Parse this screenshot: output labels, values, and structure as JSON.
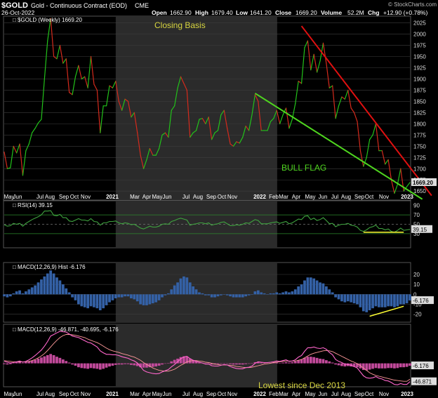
{
  "header": {
    "symbol": "$GOLD",
    "description": "Gold - Continuous Contract (EOD)",
    "exchange": "CME",
    "date": "26-Oct-2022",
    "brand": "© StockCharts.com",
    "open_label": "Open",
    "open": "1662.90",
    "high_label": "High",
    "high": "1679.40",
    "low_label": "Low",
    "low": "1641.20",
    "close_label": "Close",
    "close": "1669.20",
    "volume_label": "Volume",
    "volume": "52.2M",
    "chg_label": "Chg",
    "chg": "+12.90 (+0.78%)"
  },
  "colors": {
    "up": "#22c21a",
    "down": "#d42a1c",
    "annotation_text": "#d8d640",
    "bull_flag_line": "#4fd61f",
    "resistance_line": "#e01010",
    "shading": "#2b2b2b",
    "rsi_line": "#3fa43f",
    "histogram": "#3461a6",
    "macd_line": "#ff66cc",
    "signal_line": "#ff9a9a",
    "macd_hist": "#c24a9b",
    "yellow_line": "#ffff33"
  },
  "chart_data": [
    {
      "type": "line",
      "panel": "price",
      "legend": "$GOLD (Weekly) 1669.20",
      "last_value_label": "1669.20",
      "annotations": [
        "Closing Basis",
        "BULL FLAG"
      ],
      "ylim": [
        1630,
        2040
      ],
      "yticks": [
        1650,
        1675,
        1700,
        1725,
        1750,
        1775,
        1800,
        1825,
        1850,
        1875,
        1900,
        1925,
        1950,
        1975,
        2000,
        2025
      ],
      "x_labels": [
        "May",
        "Jun",
        "Jul",
        "Aug",
        "Sep",
        "Oct",
        "Nov",
        "2021",
        "Mar",
        "Apr",
        "May",
        "Jun",
        "Jul",
        "Aug",
        "Sep",
        "Oct",
        "Nov",
        "2022",
        "Feb",
        "Mar",
        "Apr",
        "May",
        "Jun",
        "Jul",
        "Aug",
        "Sep",
        "Oct",
        "Nov",
        "2023"
      ],
      "x": [
        "2020-04-24",
        "2020-05-01",
        "2020-05-08",
        "2020-05-15",
        "2020-05-22",
        "2020-05-29",
        "2020-06-05",
        "2020-06-12",
        "2020-06-19",
        "2020-06-26",
        "2020-07-03",
        "2020-07-10",
        "2020-07-17",
        "2020-07-24",
        "2020-07-31",
        "2020-08-07",
        "2020-08-14",
        "2020-08-21",
        "2020-08-28",
        "2020-09-04",
        "2020-09-11",
        "2020-09-18",
        "2020-09-25",
        "2020-10-02",
        "2020-10-09",
        "2020-10-16",
        "2020-10-23",
        "2020-10-30",
        "2020-11-06",
        "2020-11-13",
        "2020-11-20",
        "2020-11-27",
        "2020-12-04",
        "2020-12-11",
        "2020-12-18",
        "2020-12-25",
        "2021-01-01",
        "2021-01-08",
        "2021-01-15",
        "2021-01-22",
        "2021-01-29",
        "2021-02-05",
        "2021-02-12",
        "2021-02-19",
        "2021-02-26",
        "2021-03-05",
        "2021-03-12",
        "2021-03-19",
        "2021-03-26",
        "2021-04-02",
        "2021-04-09",
        "2021-04-16",
        "2021-04-23",
        "2021-04-30",
        "2021-05-07",
        "2021-05-14",
        "2021-05-21",
        "2021-05-28",
        "2021-06-04",
        "2021-06-11",
        "2021-06-18",
        "2021-06-25",
        "2021-07-02",
        "2021-07-09",
        "2021-07-16",
        "2021-07-23",
        "2021-07-30",
        "2021-08-06",
        "2021-08-13",
        "2021-08-20",
        "2021-08-27",
        "2021-09-03",
        "2021-09-10",
        "2021-09-17",
        "2021-09-24",
        "2021-10-01",
        "2021-10-08",
        "2021-10-15",
        "2021-10-22",
        "2021-10-29",
        "2021-11-05",
        "2021-11-12",
        "2021-11-19",
        "2021-11-26",
        "2021-12-03",
        "2021-12-10",
        "2021-12-17",
        "2021-12-24",
        "2021-12-31",
        "2022-01-07",
        "2022-01-14",
        "2022-01-21",
        "2022-01-28",
        "2022-02-04",
        "2022-02-11",
        "2022-02-18",
        "2022-02-25",
        "2022-03-04",
        "2022-03-11",
        "2022-03-18",
        "2022-03-25",
        "2022-04-01",
        "2022-04-08",
        "2022-04-15",
        "2022-04-22",
        "2022-04-29",
        "2022-05-06",
        "2022-05-13",
        "2022-05-20",
        "2022-05-27",
        "2022-06-03",
        "2022-06-10",
        "2022-06-17",
        "2022-06-24",
        "2022-07-01",
        "2022-07-08",
        "2022-07-15",
        "2022-07-22",
        "2022-07-29",
        "2022-08-05",
        "2022-08-12",
        "2022-08-19",
        "2022-08-26",
        "2022-09-02",
        "2022-09-09",
        "2022-09-16",
        "2022-09-23",
        "2022-09-30",
        "2022-10-07",
        "2022-10-14",
        "2022-10-21",
        "2022-10-28"
      ],
      "values": [
        1737,
        1700,
        1702,
        1750,
        1735,
        1755,
        1685,
        1740,
        1755,
        1780,
        1790,
        1802,
        1810,
        1900,
        1985,
        2035,
        1950,
        1945,
        1975,
        1935,
        1945,
        1870,
        1865,
        1905,
        1930,
        1900,
        1905,
        1880,
        1950,
        1888,
        1875,
        1780,
        1840,
        1840,
        1885,
        1880,
        1895,
        1850,
        1830,
        1855,
        1850,
        1815,
        1825,
        1780,
        1730,
        1700,
        1720,
        1745,
        1730,
        1730,
        1745,
        1775,
        1780,
        1770,
        1830,
        1840,
        1880,
        1905,
        1890,
        1875,
        1770,
        1780,
        1785,
        1810,
        1812,
        1800,
        1815,
        1765,
        1780,
        1785,
        1820,
        1830,
        1790,
        1755,
        1750,
        1760,
        1757,
        1770,
        1795,
        1785,
        1820,
        1865,
        1850,
        1785,
        1785,
        1785,
        1805,
        1812,
        1830,
        1800,
        1820,
        1835,
        1790,
        1810,
        1845,
        1895,
        1890,
        1970,
        1985,
        1920,
        1955,
        1915,
        1940,
        1980,
        1935,
        1880,
        1885,
        1812,
        1840,
        1860,
        1855,
        1875,
        1835,
        1825,
        1805,
        1740,
        1705,
        1725,
        1765,
        1775,
        1800,
        1740,
        1740,
        1710,
        1720,
        1675,
        1645,
        1665,
        1700,
        1650,
        1660,
        1669.2
      ]
    },
    {
      "type": "line",
      "panel": "rsi",
      "legend": "RSI(14) 39.15",
      "last_value_label": "39.15",
      "ylim": [
        0,
        100
      ],
      "yticks": [
        30,
        50,
        70,
        90
      ],
      "values": [
        49,
        46,
        47,
        52,
        50,
        52,
        46,
        52,
        56,
        60,
        63,
        66,
        70,
        78,
        78,
        79,
        69,
        68,
        71,
        64,
        64,
        57,
        56,
        59,
        62,
        59,
        59,
        57,
        62,
        56,
        55,
        48,
        53,
        53,
        56,
        56,
        57,
        53,
        51,
        53,
        52,
        49,
        50,
        46,
        42,
        40,
        43,
        46,
        44,
        44,
        46,
        50,
        51,
        50,
        56,
        58,
        61,
        63,
        61,
        59,
        48,
        50,
        51,
        53,
        53,
        51,
        53,
        48,
        50,
        51,
        54,
        55,
        51,
        47,
        47,
        49,
        48,
        50,
        53,
        52,
        56,
        60,
        58,
        51,
        51,
        51,
        53,
        54,
        55,
        52,
        54,
        56,
        51,
        53,
        57,
        61,
        60,
        67,
        68,
        60,
        63,
        58,
        60,
        64,
        58,
        51,
        52,
        45,
        48,
        50,
        50,
        52,
        48,
        47,
        44,
        37,
        35,
        38,
        43,
        45,
        48,
        41,
        41,
        38,
        40,
        35,
        33,
        37,
        42,
        37,
        38,
        39.15
      ]
    },
    {
      "type": "bar",
      "panel": "macd_histogram",
      "legend": "MACD(12,26,9) Hist -6.176",
      "last_value_label": "-6.176",
      "ylim": [
        -28,
        32
      ],
      "yticks": [
        -20,
        -10,
        0,
        10,
        20
      ],
      "values": [
        -2,
        -3,
        -2,
        1,
        3,
        4,
        1,
        3,
        5,
        7,
        9,
        12,
        15,
        18,
        21,
        24,
        21,
        17,
        14,
        10,
        6,
        2,
        -3,
        -6,
        -10,
        -12,
        -13,
        -14,
        -12,
        -13,
        -14,
        -16,
        -14,
        -11,
        -8,
        -6,
        -4,
        -3,
        -3,
        -2,
        -2,
        -4,
        -5,
        -7,
        -10,
        -11,
        -11,
        -10,
        -9,
        -8,
        -6,
        -3,
        -1,
        1,
        5,
        9,
        12,
        16,
        18,
        17,
        12,
        8,
        5,
        2,
        1,
        -1,
        -1,
        -3,
        -3,
        -2,
        -1,
        0,
        -1,
        -2,
        -3,
        -3,
        -3,
        -3,
        -2,
        -1,
        0,
        3,
        4,
        2,
        1,
        0,
        1,
        1,
        2,
        1,
        2,
        3,
        2,
        3,
        5,
        8,
        10,
        14,
        17,
        17,
        16,
        14,
        12,
        11,
        8,
        5,
        2,
        -3,
        -5,
        -7,
        -8,
        -7,
        -8,
        -9,
        -10,
        -13,
        -17,
        -18,
        -16,
        -14,
        -12,
        -13,
        -13,
        -13,
        -12,
        -12,
        -13,
        -12,
        -10,
        -10,
        -9,
        -6.176
      ]
    },
    {
      "type": "line",
      "panel": "macd",
      "legend": "MACD(12,26,9) -46.871, -40.695, -6.176",
      "last_value_labels": [
        "-6.176",
        "-46.871"
      ],
      "annotations": [
        "Lowest since Dec 2013"
      ],
      "ylim": [
        -60,
        100
      ],
      "series": [
        {
          "name": "MACD",
          "values": [
            5,
            3,
            1,
            2,
            4,
            6,
            3,
            5,
            9,
            14,
            20,
            27,
            34,
            44,
            56,
            70,
            74,
            78,
            82,
            81,
            80,
            75,
            70,
            68,
            66,
            62,
            58,
            54,
            52,
            47,
            42,
            32,
            27,
            23,
            23,
            22,
            22,
            20,
            17,
            15,
            13,
            9,
            6,
            1,
            -8,
            -18,
            -22,
            -24,
            -26,
            -27,
            -26,
            -22,
            -19,
            -16,
            -9,
            -3,
            4,
            12,
            16,
            18,
            12,
            8,
            5,
            3,
            1,
            -2,
            -2,
            -6,
            -7,
            -7,
            -5,
            -3,
            -4,
            -8,
            -11,
            -13,
            -14,
            -14,
            -11,
            -10,
            -7,
            0,
            4,
            3,
            2,
            2,
            3,
            4,
            6,
            5,
            7,
            9,
            5,
            6,
            9,
            16,
            20,
            31,
            40,
            40,
            42,
            39,
            38,
            40,
            36,
            28,
            22,
            10,
            5,
            2,
            -2,
            -3,
            -5,
            -8,
            -12,
            -22,
            -32,
            -37,
            -38,
            -37,
            -34,
            -38,
            -40,
            -44,
            -45,
            -49,
            -54,
            -55,
            -52,
            -54,
            -54,
            -46.871
          ]
        },
        {
          "name": "Signal",
          "values": [
            7,
            6,
            5,
            4,
            4,
            4,
            4,
            4,
            5,
            7,
            10,
            14,
            19,
            25,
            33,
            42,
            51,
            59,
            66,
            71,
            74,
            74,
            73,
            72,
            70,
            68,
            66,
            62,
            59,
            56,
            53,
            49,
            44,
            39,
            35,
            32,
            30,
            28,
            25,
            23,
            21,
            18,
            16,
            12,
            8,
            2,
            -3,
            -7,
            -12,
            -15,
            -18,
            -19,
            -20,
            -20,
            -18,
            -15,
            -10,
            -5,
            -1,
            4,
            6,
            7,
            7,
            6,
            5,
            3,
            2,
            0,
            -2,
            -3,
            -4,
            -4,
            -4,
            -5,
            -6,
            -8,
            -9,
            -10,
            -11,
            -11,
            -10,
            -8,
            -6,
            -4,
            -2,
            -1,
            0,
            2,
            3,
            4,
            5,
            6,
            6,
            6,
            6,
            8,
            10,
            14,
            19,
            23,
            26,
            28,
            30,
            32,
            33,
            32,
            30,
            26,
            22,
            18,
            14,
            10,
            6,
            3,
            -1,
            -6,
            -12,
            -18,
            -24,
            -28,
            -31,
            -33,
            -35,
            -37,
            -39,
            -41,
            -43,
            -44,
            -45,
            -46,
            -46,
            -40.695
          ]
        },
        {
          "name": "Hist",
          "values": [
            -2,
            -3,
            -2,
            1,
            3,
            4,
            1,
            3,
            5,
            7,
            9,
            12,
            15,
            18,
            21,
            24,
            21,
            17,
            14,
            10,
            6,
            2,
            -3,
            -6,
            -10,
            -12,
            -13,
            -14,
            -12,
            -13,
            -14,
            -16,
            -14,
            -11,
            -8,
            -6,
            -4,
            -3,
            -3,
            -2,
            -2,
            -4,
            -5,
            -7,
            -10,
            -11,
            -11,
            -10,
            -9,
            -8,
            -6,
            -3,
            -1,
            1,
            5,
            9,
            12,
            16,
            18,
            17,
            12,
            8,
            5,
            2,
            1,
            -1,
            -1,
            -3,
            -3,
            -2,
            -1,
            0,
            -1,
            -2,
            -3,
            -3,
            -3,
            -3,
            -2,
            -1,
            0,
            3,
            4,
            2,
            1,
            0,
            1,
            1,
            2,
            1,
            2,
            3,
            2,
            3,
            5,
            8,
            10,
            14,
            17,
            17,
            16,
            14,
            12,
            11,
            8,
            5,
            2,
            -3,
            -5,
            -7,
            -8,
            -7,
            -8,
            -9,
            -10,
            -13,
            -17,
            -18,
            -16,
            -14,
            -12,
            -13,
            -13,
            -13,
            -12,
            -12,
            -13,
            -12,
            -10,
            -10,
            -9,
            -6.176
          ]
        }
      ]
    }
  ]
}
